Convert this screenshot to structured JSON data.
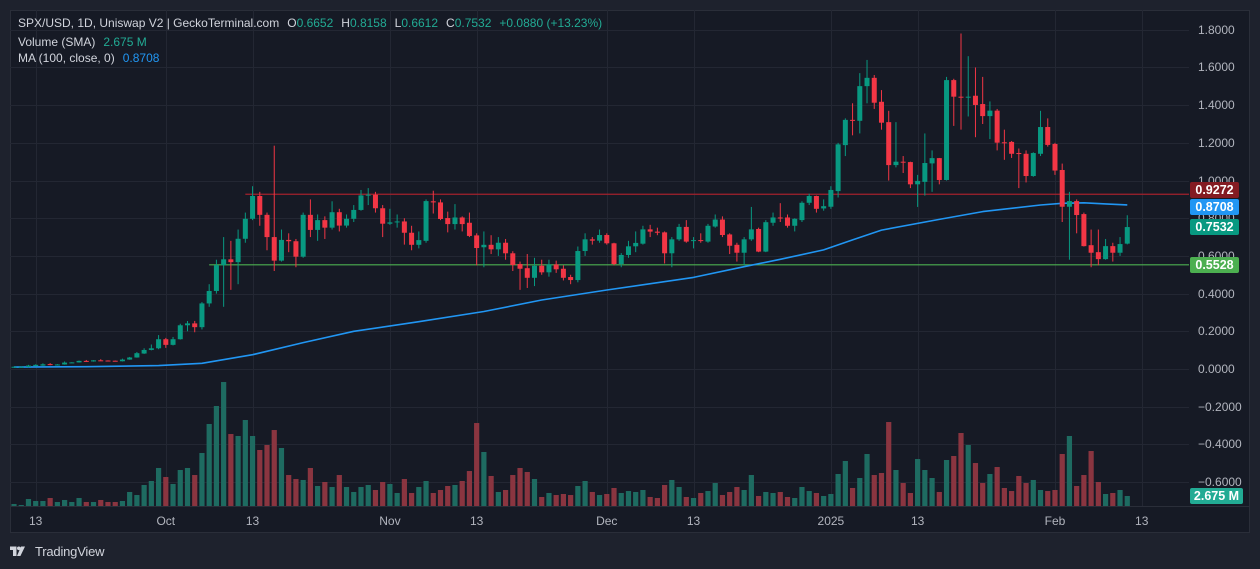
{
  "app": {
    "brand": "TradingView"
  },
  "legend": {
    "title": "SPX/USD, 1D, Uniswap V2 | GeckoTerminal.com",
    "ohlc": [
      {
        "key": "O",
        "value": "0.6652"
      },
      {
        "key": "H",
        "value": "0.8158"
      },
      {
        "key": "L",
        "value": "0.6612"
      },
      {
        "key": "C",
        "value": "0.7532"
      }
    ],
    "change": "+0.0880 (+13.23%)",
    "volume": {
      "label": "Volume (SMA)",
      "value": "2.675 M"
    },
    "ma": {
      "label": "MA (100, close, 0)",
      "value": "0.8708"
    }
  },
  "colors": {
    "up": "#089981",
    "down": "#f23645",
    "volume_up": "#1e6b61",
    "volume_down": "#8a3540",
    "ma": "#2196f3",
    "grid": "#232733",
    "legend_value_up": "#22ab94"
  },
  "chart_data": {
    "type": "candlestick",
    "title": "SPX/USD, 1D, Uniswap V2 | GeckoTerminal.com",
    "xlabel": "",
    "ylabel": "",
    "ylim": [
      -0.727,
      1.905
    ],
    "grid": true,
    "legend_position": "top-left",
    "ohlc_fields": [
      "open",
      "high",
      "low",
      "close"
    ],
    "x_ticks": [
      {
        "label": "13",
        "index": 3
      },
      {
        "label": "Oct",
        "index": 21
      },
      {
        "label": "13",
        "index": 33
      },
      {
        "label": "Nov",
        "index": 52
      },
      {
        "label": "13",
        "index": 64
      },
      {
        "label": "Dec",
        "index": 82
      },
      {
        "label": "13",
        "index": 94
      },
      {
        "label": "2025",
        "index": 113
      },
      {
        "label": "13",
        "index": 125
      },
      {
        "label": "Feb",
        "index": 144
      },
      {
        "label": "13",
        "index": 156
      }
    ],
    "y_ticks": [
      {
        "label": "1.8000",
        "value": 1.8
      },
      {
        "label": "1.6000",
        "value": 1.6
      },
      {
        "label": "1.4000",
        "value": 1.4
      },
      {
        "label": "1.2000",
        "value": 1.2
      },
      {
        "label": "1.0000",
        "value": 1.0
      },
      {
        "label": "0.8000",
        "value": 0.8
      },
      {
        "label": "0.6000",
        "value": 0.6
      },
      {
        "label": "0.4000",
        "value": 0.4
      },
      {
        "label": "0.2000",
        "value": 0.2
      },
      {
        "label": "0.0000",
        "value": 0.0
      },
      {
        "label": "−0.2000",
        "value": -0.2
      },
      {
        "label": "−0.4000",
        "value": -0.4
      },
      {
        "label": "−0.6000",
        "value": -0.6
      }
    ],
    "ohlc": [
      [
        0.01,
        0.013,
        0.009,
        0.012
      ],
      [
        0.011,
        0.013,
        0.01,
        0.012
      ],
      [
        0.011,
        0.022,
        0.009,
        0.018
      ],
      [
        0.016,
        0.025,
        0.015,
        0.022
      ],
      [
        0.018,
        0.03,
        0.017,
        0.025
      ],
      [
        0.026,
        0.031,
        0.02,
        0.022
      ],
      [
        0.022,
        0.026,
        0.021,
        0.024
      ],
      [
        0.024,
        0.04,
        0.023,
        0.034
      ],
      [
        0.034,
        0.036,
        0.033,
        0.035
      ],
      [
        0.035,
        0.045,
        0.034,
        0.043
      ],
      [
        0.043,
        0.048,
        0.038,
        0.04
      ],
      [
        0.04,
        0.047,
        0.039,
        0.046
      ],
      [
        0.046,
        0.052,
        0.044,
        0.045
      ],
      [
        0.045,
        0.046,
        0.043,
        0.044
      ],
      [
        0.044,
        0.045,
        0.04,
        0.041
      ],
      [
        0.041,
        0.055,
        0.04,
        0.05
      ],
      [
        0.05,
        0.064,
        0.049,
        0.061
      ],
      [
        0.061,
        0.09,
        0.06,
        0.084
      ],
      [
        0.082,
        0.11,
        0.08,
        0.101
      ],
      [
        0.101,
        0.13,
        0.099,
        0.11
      ],
      [
        0.11,
        0.18,
        0.105,
        0.158
      ],
      [
        0.158,
        0.165,
        0.112,
        0.128
      ],
      [
        0.128,
        0.17,
        0.125,
        0.158
      ],
      [
        0.158,
        0.24,
        0.156,
        0.232
      ],
      [
        0.232,
        0.255,
        0.2,
        0.242
      ],
      [
        0.242,
        0.255,
        0.195,
        0.222
      ],
      [
        0.222,
        0.355,
        0.21,
        0.348
      ],
      [
        0.348,
        0.45,
        0.33,
        0.414
      ],
      [
        0.414,
        0.58,
        0.4,
        0.551
      ],
      [
        0.551,
        0.7,
        0.33,
        0.582
      ],
      [
        0.582,
        0.68,
        0.42,
        0.567
      ],
      [
        0.567,
        0.74,
        0.45,
        0.691
      ],
      [
        0.691,
        0.83,
        0.67,
        0.797
      ],
      [
        0.797,
        0.97,
        0.79,
        0.918
      ],
      [
        0.918,
        0.94,
        0.76,
        0.818
      ],
      [
        0.818,
        0.83,
        0.63,
        0.7
      ],
      [
        0.7,
        1.185,
        0.52,
        0.575
      ],
      [
        0.575,
        0.74,
        0.57,
        0.685
      ],
      [
        0.685,
        0.72,
        0.62,
        0.678
      ],
      [
        0.678,
        0.69,
        0.54,
        0.596
      ],
      [
        0.596,
        0.83,
        0.59,
        0.818
      ],
      [
        0.818,
        0.9,
        0.7,
        0.738
      ],
      [
        0.738,
        0.82,
        0.68,
        0.79
      ],
      [
        0.79,
        0.81,
        0.69,
        0.75
      ],
      [
        0.75,
        0.89,
        0.74,
        0.832
      ],
      [
        0.832,
        0.85,
        0.73,
        0.761
      ],
      [
        0.761,
        0.82,
        0.75,
        0.797
      ],
      [
        0.797,
        0.87,
        0.78,
        0.844
      ],
      [
        0.844,
        0.95,
        0.84,
        0.921
      ],
      [
        0.922,
        0.96,
        0.87,
        0.925
      ],
      [
        0.925,
        0.94,
        0.83,
        0.853
      ],
      [
        0.853,
        0.87,
        0.7,
        0.771
      ],
      [
        0.771,
        0.85,
        0.765,
        0.778
      ],
      [
        0.78,
        0.82,
        0.75,
        0.783
      ],
      [
        0.783,
        0.8,
        0.66,
        0.723
      ],
      [
        0.723,
        0.76,
        0.63,
        0.659
      ],
      [
        0.659,
        0.73,
        0.64,
        0.684
      ],
      [
        0.68,
        0.9,
        0.67,
        0.891
      ],
      [
        0.89,
        0.946,
        0.825,
        0.884
      ],
      [
        0.884,
        0.9,
        0.79,
        0.796
      ],
      [
        0.801,
        0.835,
        0.725,
        0.769
      ],
      [
        0.769,
        0.875,
        0.74,
        0.804
      ],
      [
        0.804,
        0.81,
        0.73,
        0.769
      ],
      [
        0.776,
        0.83,
        0.7,
        0.706
      ],
      [
        0.709,
        0.72,
        0.55,
        0.642
      ],
      [
        0.646,
        0.73,
        0.54,
        0.659
      ],
      [
        0.659,
        0.71,
        0.61,
        0.635
      ],
      [
        0.635,
        0.7,
        0.6,
        0.67
      ],
      [
        0.67,
        0.69,
        0.58,
        0.614
      ],
      [
        0.614,
        0.625,
        0.52,
        0.552
      ],
      [
        0.557,
        0.57,
        0.42,
        0.532
      ],
      [
        0.535,
        0.61,
        0.43,
        0.484
      ],
      [
        0.484,
        0.59,
        0.44,
        0.548
      ],
      [
        0.548,
        0.58,
        0.5,
        0.513
      ],
      [
        0.513,
        0.58,
        0.49,
        0.555
      ],
      [
        0.555,
        0.575,
        0.51,
        0.529
      ],
      [
        0.532,
        0.55,
        0.47,
        0.484
      ],
      [
        0.488,
        0.5,
        0.45,
        0.472
      ],
      [
        0.472,
        0.65,
        0.46,
        0.626
      ],
      [
        0.626,
        0.72,
        0.6,
        0.688
      ],
      [
        0.688,
        0.7,
        0.66,
        0.681
      ],
      [
        0.681,
        0.74,
        0.67,
        0.711
      ],
      [
        0.711,
        0.72,
        0.66,
        0.667
      ],
      [
        0.667,
        0.67,
        0.55,
        0.557
      ],
      [
        0.557,
        0.615,
        0.54,
        0.605
      ],
      [
        0.605,
        0.68,
        0.59,
        0.651
      ],
      [
        0.651,
        0.73,
        0.62,
        0.669
      ],
      [
        0.665,
        0.76,
        0.66,
        0.741
      ],
      [
        0.741,
        0.765,
        0.7,
        0.729
      ],
      [
        0.729,
        0.75,
        0.71,
        0.723
      ],
      [
        0.725,
        0.73,
        0.56,
        0.614
      ],
      [
        0.614,
        0.7,
        0.54,
        0.688
      ],
      [
        0.688,
        0.77,
        0.68,
        0.754
      ],
      [
        0.754,
        0.79,
        0.67,
        0.676
      ],
      [
        0.682,
        0.7,
        0.64,
        0.684
      ],
      [
        0.684,
        0.72,
        0.67,
        0.682
      ],
      [
        0.676,
        0.77,
        0.67,
        0.76
      ],
      [
        0.756,
        0.82,
        0.75,
        0.793
      ],
      [
        0.793,
        0.81,
        0.7,
        0.711
      ],
      [
        0.714,
        0.72,
        0.61,
        0.654
      ],
      [
        0.659,
        0.67,
        0.57,
        0.617
      ],
      [
        0.617,
        0.7,
        0.55,
        0.688
      ],
      [
        0.688,
        0.86,
        0.68,
        0.741
      ],
      [
        0.743,
        0.75,
        0.62,
        0.623
      ],
      [
        0.623,
        0.79,
        0.62,
        0.779
      ],
      [
        0.776,
        0.83,
        0.76,
        0.804
      ],
      [
        0.804,
        0.88,
        0.78,
        0.8
      ],
      [
        0.804,
        0.82,
        0.75,
        0.76
      ],
      [
        0.76,
        0.8,
        0.73,
        0.797
      ],
      [
        0.79,
        0.89,
        0.78,
        0.882
      ],
      [
        0.882,
        0.93,
        0.87,
        0.918
      ],
      [
        0.918,
        0.92,
        0.83,
        0.85
      ],
      [
        0.852,
        0.9,
        0.84,
        0.864
      ],
      [
        0.861,
        0.97,
        0.85,
        0.95
      ],
      [
        0.944,
        1.2,
        0.91,
        1.192
      ],
      [
        1.188,
        1.33,
        1.13,
        1.322
      ],
      [
        1.322,
        1.41,
        1.24,
        1.317
      ],
      [
        1.317,
        1.57,
        1.25,
        1.501
      ],
      [
        1.501,
        1.64,
        1.41,
        1.545
      ],
      [
        1.545,
        1.56,
        1.38,
        1.413
      ],
      [
        1.418,
        1.48,
        1.27,
        1.307
      ],
      [
        1.31,
        1.37,
        1.0,
        1.082
      ],
      [
        1.082,
        1.31,
        1.07,
        1.1
      ],
      [
        1.1,
        1.13,
        1.04,
        1.095
      ],
      [
        1.098,
        1.1,
        0.96,
        0.98
      ],
      [
        0.98,
        1.03,
        0.86,
        0.998
      ],
      [
        0.993,
        1.25,
        0.92,
        1.093
      ],
      [
        1.091,
        1.16,
        0.94,
        1.119
      ],
      [
        1.119,
        1.12,
        0.98,
        1.003
      ],
      [
        1.003,
        1.55,
        1.0,
        1.533
      ],
      [
        1.533,
        1.54,
        1.29,
        1.445
      ],
      [
        1.445,
        1.78,
        1.27,
        1.442
      ],
      [
        1.443,
        1.66,
        1.34,
        1.445
      ],
      [
        1.45,
        1.6,
        1.23,
        1.401
      ],
      [
        1.406,
        1.55,
        1.3,
        1.342
      ],
      [
        1.342,
        1.42,
        1.22,
        1.371
      ],
      [
        1.371,
        1.38,
        1.16,
        1.201
      ],
      [
        1.203,
        1.27,
        1.11,
        1.2
      ],
      [
        1.205,
        1.21,
        1.12,
        1.142
      ],
      [
        1.146,
        1.17,
        0.96,
        1.142
      ],
      [
        1.142,
        1.16,
        0.99,
        1.024
      ],
      [
        1.024,
        1.15,
        1.02,
        1.146
      ],
      [
        1.142,
        1.37,
        1.13,
        1.284
      ],
      [
        1.284,
        1.33,
        1.18,
        1.189
      ],
      [
        1.194,
        1.2,
        1.03,
        1.053
      ],
      [
        1.056,
        1.09,
        0.78,
        0.861
      ],
      [
        0.861,
        0.94,
        0.58,
        0.891
      ],
      [
        0.891,
        0.9,
        0.72,
        0.817
      ],
      [
        0.822,
        0.83,
        0.65,
        0.652
      ],
      [
        0.657,
        0.74,
        0.54,
        0.617
      ],
      [
        0.62,
        0.74,
        0.55,
        0.583
      ],
      [
        0.583,
        0.69,
        0.58,
        0.652
      ],
      [
        0.652,
        0.67,
        0.57,
        0.617
      ],
      [
        0.617,
        0.7,
        0.6,
        0.663
      ],
      [
        0.6652,
        0.8158,
        0.6612,
        0.7532
      ]
    ],
    "volume_millions": [
      0.54,
      0.27,
      1.87,
      1.34,
      1.34,
      2.14,
      1.07,
      1.61,
      1.07,
      2.14,
      1.07,
      1.07,
      1.61,
      1.07,
      1.07,
      1.34,
      3.75,
      2.94,
      5.62,
      6.69,
      10.17,
      7.76,
      5.89,
      9.63,
      10.17,
      8.29,
      14.18,
      21.94,
      26.75,
      33.17,
      19.26,
      18.73,
      23.01,
      18.73,
      14.98,
      16.32,
      20.33,
      15.52,
      8.29,
      7.22,
      6.96,
      10.17,
      5.35,
      6.42,
      5.08,
      8.29,
      5.08,
      3.75,
      5.08,
      5.62,
      4.28,
      6.42,
      5.89,
      3.48,
      7.22,
      3.48,
      5.08,
      6.69,
      3.48,
      4.28,
      5.35,
      5.62,
      6.69,
      9.36,
      22.2,
      14.45,
      8.03,
      3.75,
      4.28,
      8.29,
      10.17,
      9.1,
      7.22,
      2.41,
      3.48,
      2.94,
      3.21,
      2.94,
      5.35,
      6.69,
      3.75,
      2.94,
      3.21,
      4.82,
      3.48,
      4.01,
      3.75,
      4.28,
      2.41,
      2.14,
      5.62,
      6.96,
      5.08,
      2.41,
      2.14,
      3.48,
      4.01,
      6.15,
      2.94,
      3.75,
      5.08,
      4.28,
      8.29,
      2.68,
      3.75,
      3.48,
      3.75,
      2.41,
      2.14,
      5.08,
      4.01,
      3.48,
      2.68,
      3.21,
      8.56,
      12.04,
      4.82,
      7.49,
      13.91,
      8.29,
      8.83,
      22.47,
      9.63,
      6.15,
      3.48,
      12.57,
      9.63,
      7.49,
      3.75,
      12.31,
      13.38,
      19.53,
      16.32,
      11.5,
      6.15,
      8.56,
      10.43,
      4.82,
      4.01,
      8.03,
      6.15,
      6.96,
      4.28,
      4.01,
      4.28,
      13.91,
      18.73,
      5.35,
      8.29,
      14.71,
      6.42,
      3.21,
      3.48,
      4.28,
      2.675
    ],
    "series": [
      {
        "name": "MA (100, close, 0)",
        "color": "#2196f3",
        "last": 0.8708,
        "points": [
          [
            0,
            0.01
          ],
          [
            10,
            0.012
          ],
          [
            20,
            0.018
          ],
          [
            26,
            0.03
          ],
          [
            33,
            0.076
          ],
          [
            40,
            0.14
          ],
          [
            47,
            0.2
          ],
          [
            56,
            0.251
          ],
          [
            65,
            0.305
          ],
          [
            73,
            0.366
          ],
          [
            82,
            0.419
          ],
          [
            94,
            0.486
          ],
          [
            101,
            0.543
          ],
          [
            106,
            0.582
          ],
          [
            112,
            0.632
          ],
          [
            116,
            0.685
          ],
          [
            120,
            0.737
          ],
          [
            128,
            0.794
          ],
          [
            134,
            0.835
          ],
          [
            142,
            0.87
          ],
          [
            145,
            0.879
          ],
          [
            148,
            0.882
          ],
          [
            151,
            0.876
          ],
          [
            154,
            0.8708
          ]
        ]
      }
    ],
    "horizontal_lines": [
      {
        "name": "resistance",
        "price": 0.9272,
        "color": "#a3222c",
        "start_index": 32
      },
      {
        "name": "support",
        "price": 0.5528,
        "color": "#4caf50",
        "start_index": 27
      }
    ],
    "price_labels": [
      {
        "text": "0.9272",
        "price": 0.9272,
        "bg": "#841b22"
      },
      {
        "text": "0.8708",
        "price": 0.8708,
        "bg": "#2196f3"
      },
      {
        "text": "0.7532",
        "price": 0.7532,
        "bg": "#089981"
      },
      {
        "text": "0.5528",
        "price": 0.5528,
        "bg": "#4caf50"
      }
    ],
    "volume_label": {
      "text": "2.675 M",
      "value": 2.675,
      "bg": "#22ab94"
    },
    "last_bar": {
      "open": 0.6652,
      "high": 0.8158,
      "low": 0.6612,
      "close": 0.7532,
      "change": 0.088,
      "change_pct": 13.23,
      "volume": "2.675 M"
    }
  }
}
